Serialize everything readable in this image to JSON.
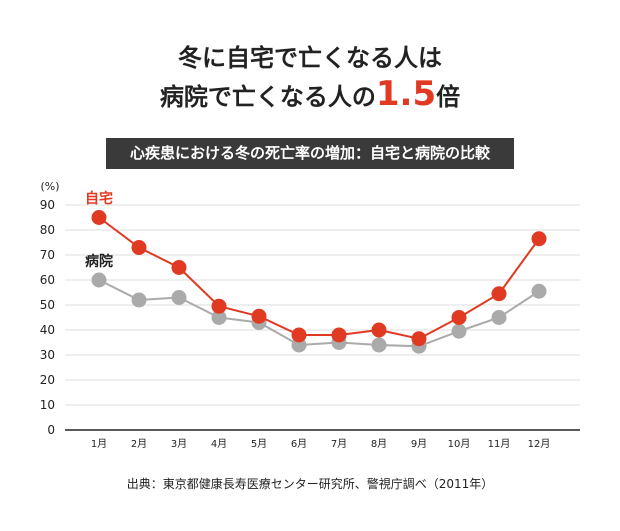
{
  "title_line1": "冬に自宅で亡くなる人は",
  "title_line2_prefix": "病院で亡くなる人の",
  "title_line2_number": "1.5",
  "title_line2_suffix": "倍",
  "subtitle": "心疾患における冬の死亡率の増加：自宅と病院の比較",
  "source": "出典：東京都健康長寿医療センター研究所、警視庁調べ（2011年）",
  "chart_data": {
    "type": "line",
    "ylabel": "(%)",
    "ylim": [
      0,
      90
    ],
    "yticks": [
      "0",
      "10",
      "20",
      "30",
      "40",
      "50",
      "60",
      "70",
      "80",
      "90"
    ],
    "categories": [
      "1月",
      "2月",
      "3月",
      "4月",
      "5月",
      "6月",
      "7月",
      "8月",
      "9月",
      "10月",
      "11月",
      "12月"
    ],
    "grid": true,
    "series": [
      {
        "name": "自宅",
        "color": "#e03a22",
        "values": [
          85,
          73,
          65,
          49.5,
          45.5,
          38,
          38,
          40,
          36.5,
          45,
          54.5,
          76.5
        ]
      },
      {
        "name": "病院",
        "color": "#aaaaaa",
        "values": [
          60,
          52,
          53,
          45,
          43,
          34,
          35,
          34,
          33.5,
          39.5,
          45,
          55.5
        ]
      }
    ]
  }
}
